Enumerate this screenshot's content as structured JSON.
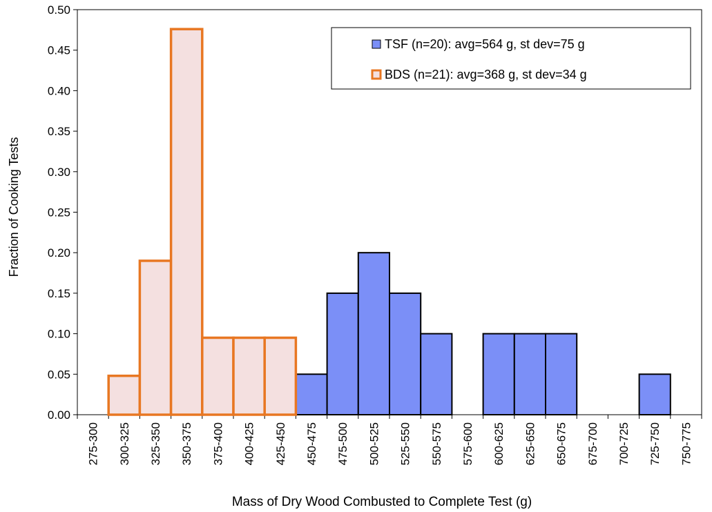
{
  "chart_data": {
    "type": "bar",
    "xlabel": "Mass of Dry Wood Combusted to Complete Test (g)",
    "ylabel": "Fraction of Cooking Tests",
    "ylim": [
      0,
      0.5
    ],
    "yticks": [
      "0.00",
      "0.05",
      "0.10",
      "0.15",
      "0.20",
      "0.25",
      "0.30",
      "0.35",
      "0.40",
      "0.45",
      "0.50"
    ],
    "grid": false,
    "legend_position": "top-right",
    "categories": [
      "275-300",
      "300-325",
      "325-350",
      "350-375",
      "375-400",
      "400-425",
      "425-450",
      "450-475",
      "475-500",
      "500-525",
      "525-550",
      "550-575",
      "575-600",
      "600-625",
      "625-650",
      "650-675",
      "675-700",
      "700-725",
      "725-750",
      "750-775"
    ],
    "series": [
      {
        "name": "TSF (n=20): avg=564 g, st dev=75 g",
        "fill": "#7b8ff7",
        "stroke": "#000000",
        "values": [
          0,
          0,
          0,
          0,
          0,
          0,
          0,
          0.05,
          0.15,
          0.2,
          0.15,
          0.1,
          0,
          0.1,
          0.1,
          0.1,
          0,
          0,
          0.05,
          0
        ]
      },
      {
        "name": "BDS (n=21): avg=368 g, st dev=34 g",
        "fill": "#f4e0e0",
        "stroke": "#e87722",
        "values": [
          0,
          0.048,
          0.19,
          0.476,
          0.095,
          0.095,
          0.095,
          0,
          0,
          0,
          0,
          0,
          0,
          0,
          0,
          0,
          0,
          0,
          0,
          0
        ]
      }
    ]
  }
}
